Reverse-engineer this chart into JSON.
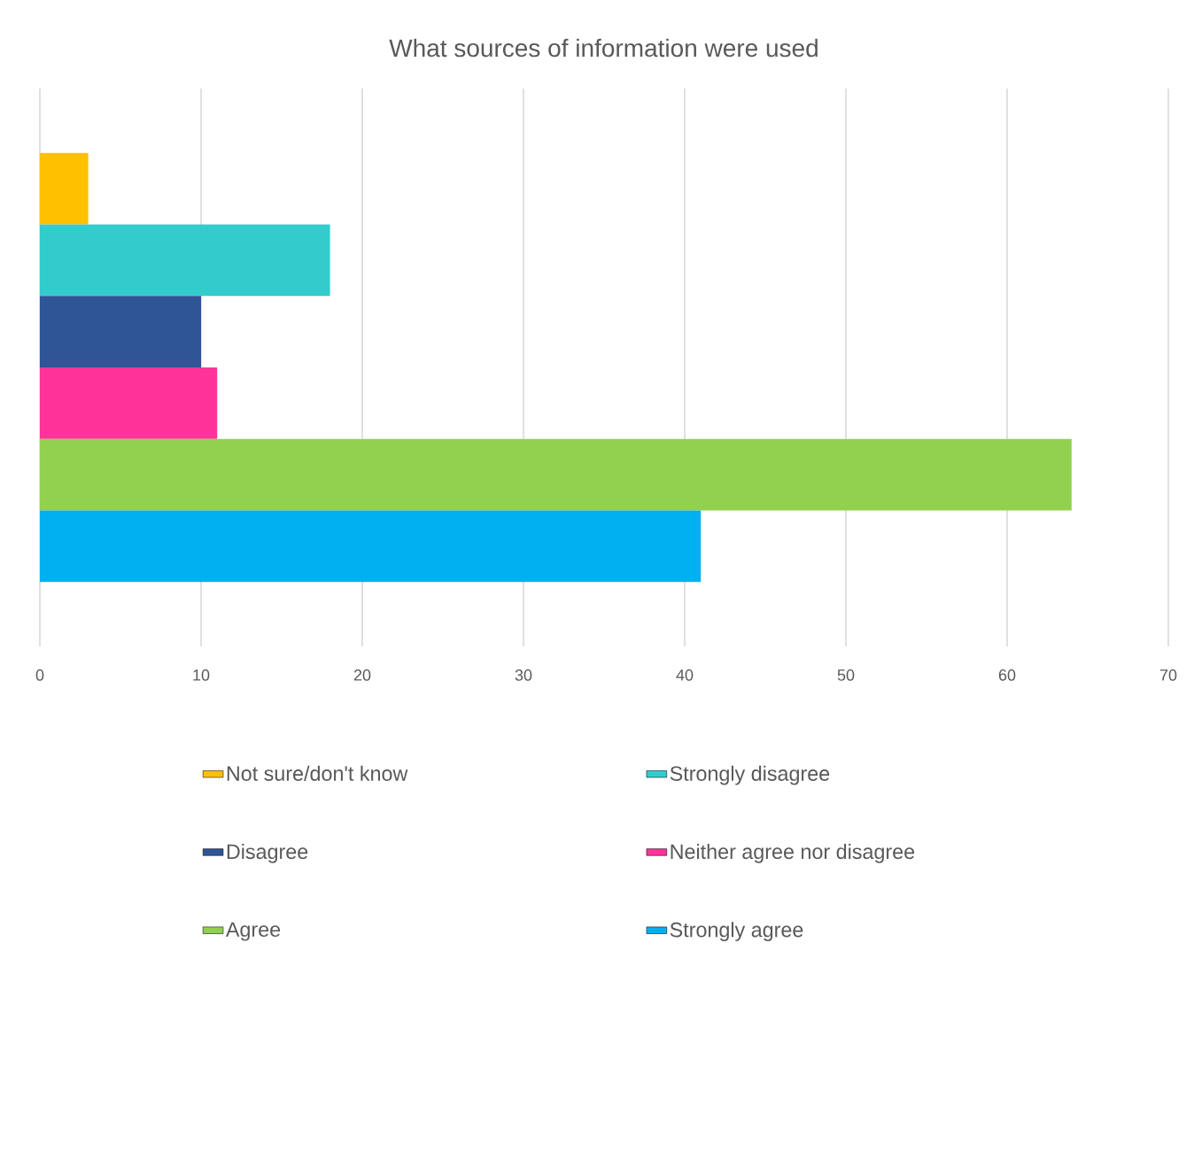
{
  "chart_data": {
    "type": "bar",
    "orientation": "horizontal",
    "title": "What sources of information were used",
    "categories": [
      null
    ],
    "series": [
      {
        "name": "Not sure/don't know",
        "color": "#ffc000",
        "values": [
          3
        ]
      },
      {
        "name": "Strongly disagree",
        "color": "#33cccc",
        "values": [
          18
        ]
      },
      {
        "name": "Disagree",
        "color": "#2f5597",
        "values": [
          10
        ]
      },
      {
        "name": "Neither agree nor disagree",
        "color": "#ff3399",
        "values": [
          11
        ]
      },
      {
        "name": "Agree",
        "color": "#92d050",
        "values": [
          64
        ]
      },
      {
        "name": "Strongly agree",
        "color": "#00b0f0",
        "values": [
          41
        ]
      }
    ],
    "xlim": [
      0,
      70
    ],
    "xticks": [
      0,
      10,
      20,
      30,
      40,
      50,
      60,
      70
    ],
    "grid": "x",
    "legend": "bottom"
  }
}
